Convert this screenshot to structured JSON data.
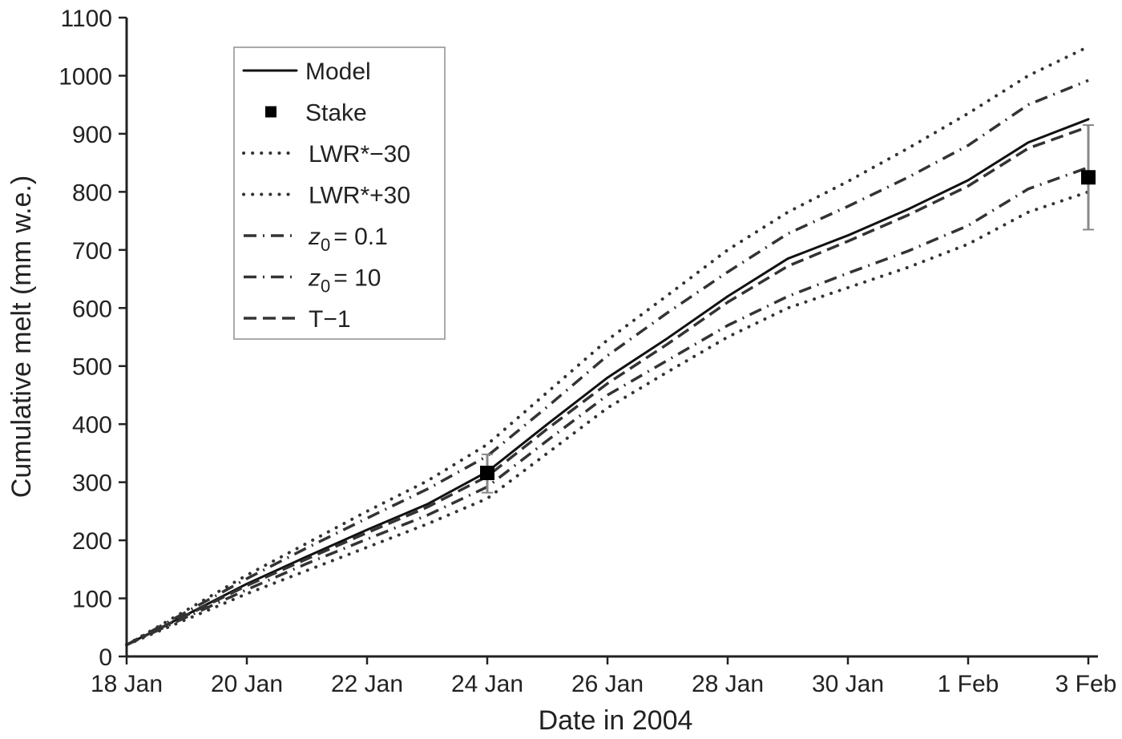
{
  "chart_data": {
    "type": "line",
    "title": "",
    "xlabel": "Date in 2004",
    "ylabel": "Cumulative melt (mm w.e.)",
    "ylim": [
      0,
      1100
    ],
    "yticks": [
      0,
      100,
      200,
      300,
      400,
      500,
      600,
      700,
      800,
      900,
      1000,
      1100
    ],
    "x_days": [
      0,
      1,
      2,
      3,
      4,
      5,
      6,
      7,
      8,
      9,
      10,
      11,
      12,
      13,
      14,
      15,
      16
    ],
    "x_tick_days": [
      0,
      2,
      4,
      6,
      8,
      10,
      12,
      14,
      16
    ],
    "x_tick_labels": [
      "18 Jan",
      "20 Jan",
      "22 Jan",
      "24 Jan",
      "26 Jan",
      "28 Jan",
      "30 Jan",
      "1 Feb",
      "3 Feb"
    ],
    "grid": false,
    "legend_position": "upper left",
    "series": [
      {
        "name": "Model",
        "style": "solid",
        "values": [
          20,
          72,
          125,
          172,
          218,
          262,
          318,
          400,
          480,
          548,
          620,
          685,
          725,
          770,
          820,
          885,
          925
        ]
      },
      {
        "name": "LWR*−30",
        "style": "dotted",
        "values": [
          20,
          64,
          108,
          148,
          188,
          228,
          272,
          350,
          428,
          490,
          550,
          600,
          635,
          670,
          710,
          765,
          800
        ]
      },
      {
        "name": "LWR*+30",
        "style": "dotted",
        "values": [
          20,
          80,
          140,
          195,
          250,
          302,
          365,
          455,
          545,
          622,
          700,
          765,
          818,
          875,
          935,
          1000,
          1050
        ]
      },
      {
        "name": "z0 = 0.1",
        "style": "dashdot",
        "values": [
          20,
          68,
          115,
          160,
          202,
          243,
          292,
          372,
          450,
          510,
          570,
          620,
          660,
          698,
          742,
          805,
          842
        ]
      },
      {
        "name": "z0 = 10",
        "style": "dashdot",
        "values": [
          20,
          77,
          134,
          187,
          238,
          288,
          345,
          430,
          518,
          592,
          662,
          728,
          775,
          825,
          880,
          950,
          992
        ]
      },
      {
        "name": "T−1",
        "style": "dashed",
        "values": [
          20,
          71,
          122,
          168,
          213,
          257,
          310,
          392,
          470,
          538,
          610,
          672,
          715,
          760,
          810,
          875,
          912
        ]
      }
    ],
    "stake": {
      "name": "Stake",
      "points": [
        {
          "day": 6,
          "value": 316,
          "err_low": 282,
          "err_high": 348
        },
        {
          "day": 16,
          "value": 825,
          "err_low": 735,
          "err_high": 915
        }
      ]
    }
  },
  "legend": {
    "items": [
      {
        "label": "Model",
        "style": "solid"
      },
      {
        "label": "Stake",
        "style": "marker"
      },
      {
        "label": "LWR*−30",
        "style": "dotted"
      },
      {
        "label": "LWR*+30",
        "style": "dotted"
      },
      {
        "label": "z",
        "sub": "0",
        "rest": "= 0.1",
        "style": "dashdot"
      },
      {
        "label": "z",
        "sub": "0",
        "rest": "= 10",
        "style": "dashdot"
      },
      {
        "label": "T−1",
        "style": "dashed"
      }
    ]
  }
}
